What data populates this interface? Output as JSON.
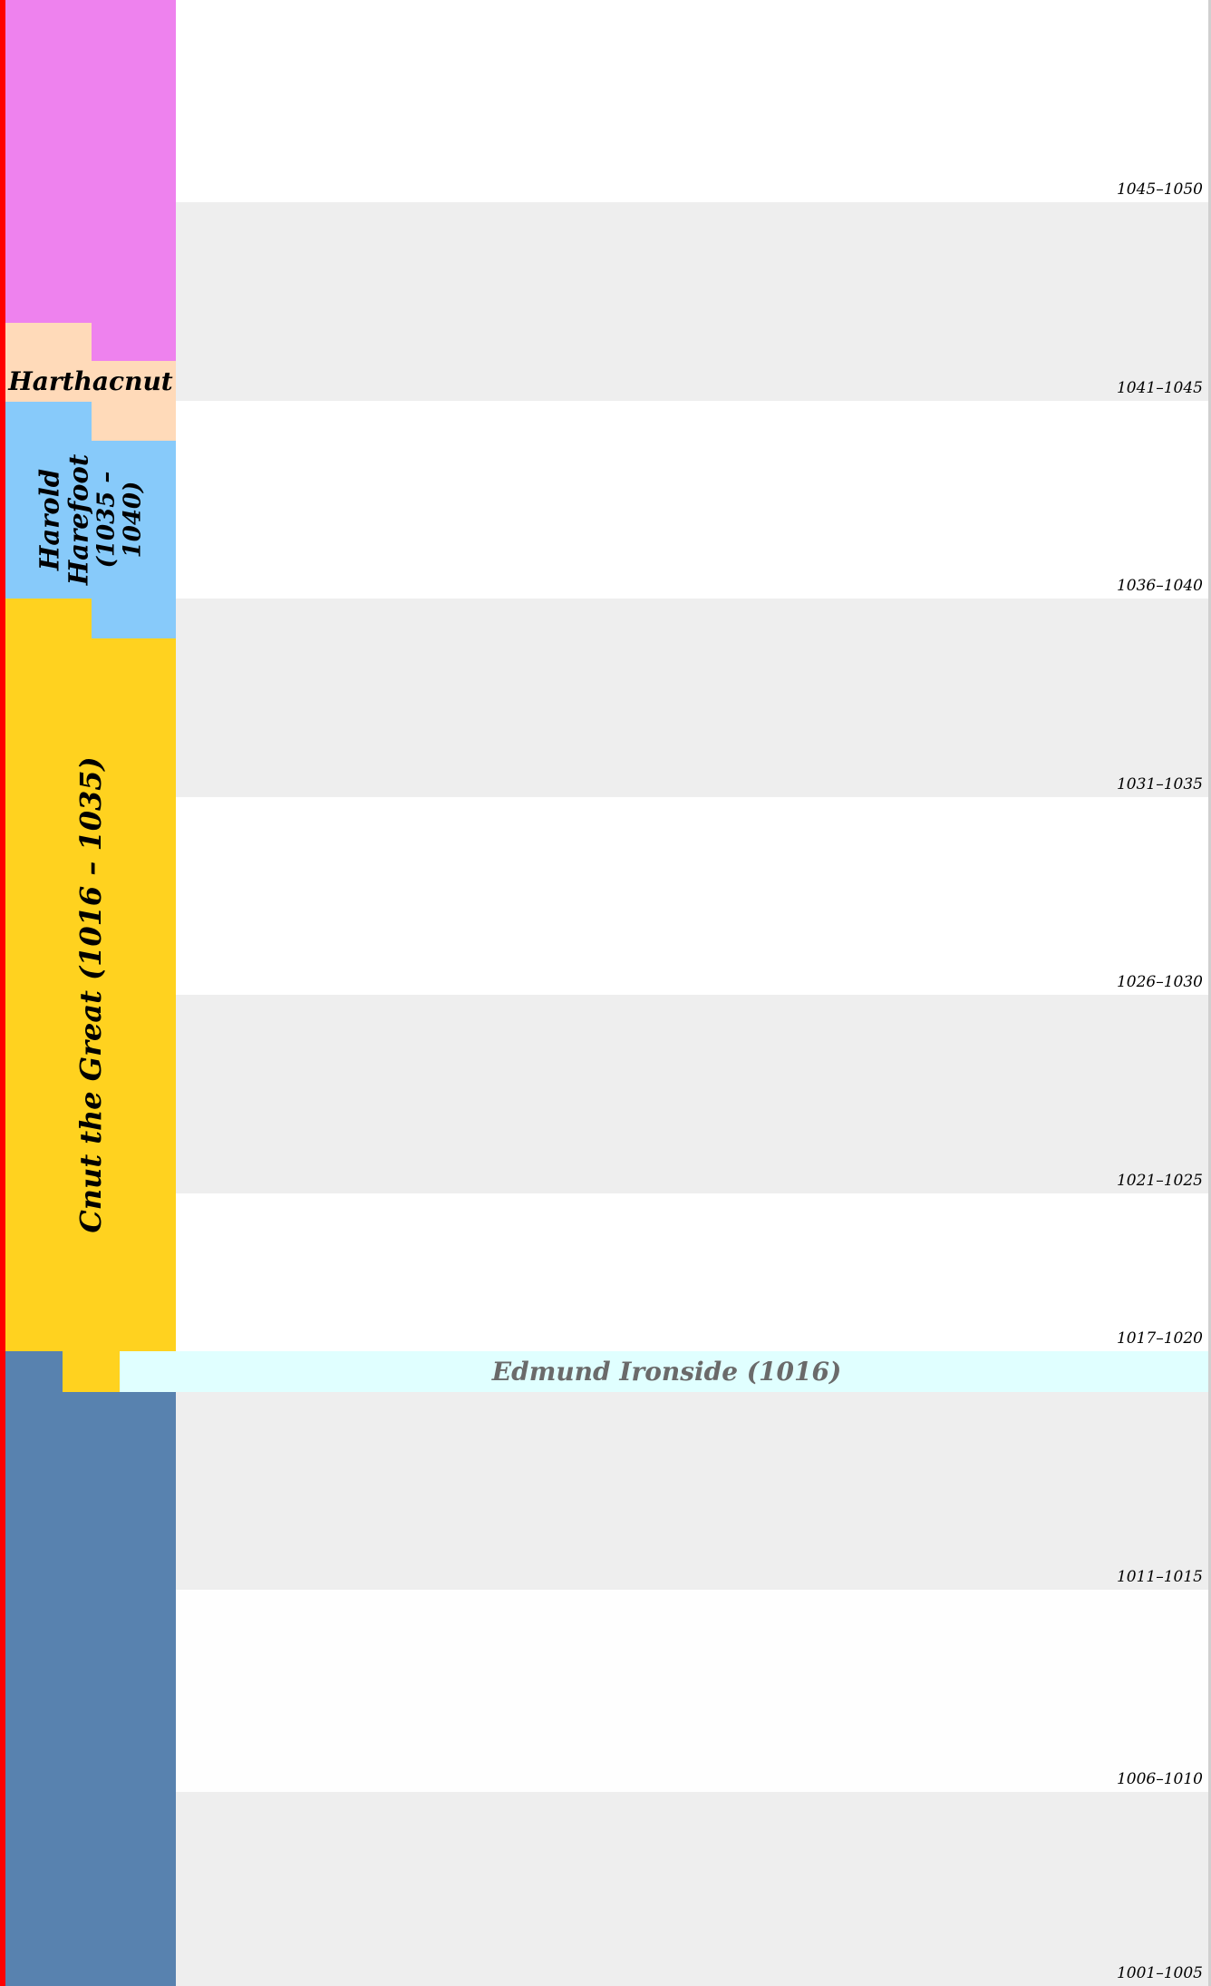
{
  "timeline": {
    "periods": [
      {
        "label": "1045–1050",
        "shade": "#ffffff"
      },
      {
        "label": "1041–1045",
        "shade": "#eeeeee"
      },
      {
        "label": "1036–1040",
        "shade": "#ffffff"
      },
      {
        "label": "1031–1035",
        "shade": "#eeeeee"
      },
      {
        "label": "1026–1030",
        "shade": "#ffffff"
      },
      {
        "label": "1021–1025",
        "shade": "#eeeeee"
      },
      {
        "label": "1017–1020",
        "shade": "#ffffff"
      },
      {
        "label": "1011–1015",
        "shade": "#eeeeee"
      },
      {
        "label": "1006–1010",
        "shade": "#ffffff"
      },
      {
        "label": "1001–1005",
        "shade": "#eeeeee"
      }
    ],
    "reigns": {
      "edward": {
        "color": "#ee82ee"
      },
      "harthacnut": {
        "name": "Harthacnut",
        "color": "#ffdab9"
      },
      "harold": {
        "line1": "Harold",
        "line2": "Harefoot",
        "line3": "(1035 –",
        "line4": "1040)",
        "color": "#87cafa"
      },
      "cnut": {
        "name": "Cnut the Great (1016 – 1035)",
        "color": "#ffd21f"
      },
      "edmund": {
        "name": "Edmund Ironside (1016)",
        "color": "#e0ffff"
      },
      "aethelred": {
        "color": "#5882af"
      }
    }
  }
}
